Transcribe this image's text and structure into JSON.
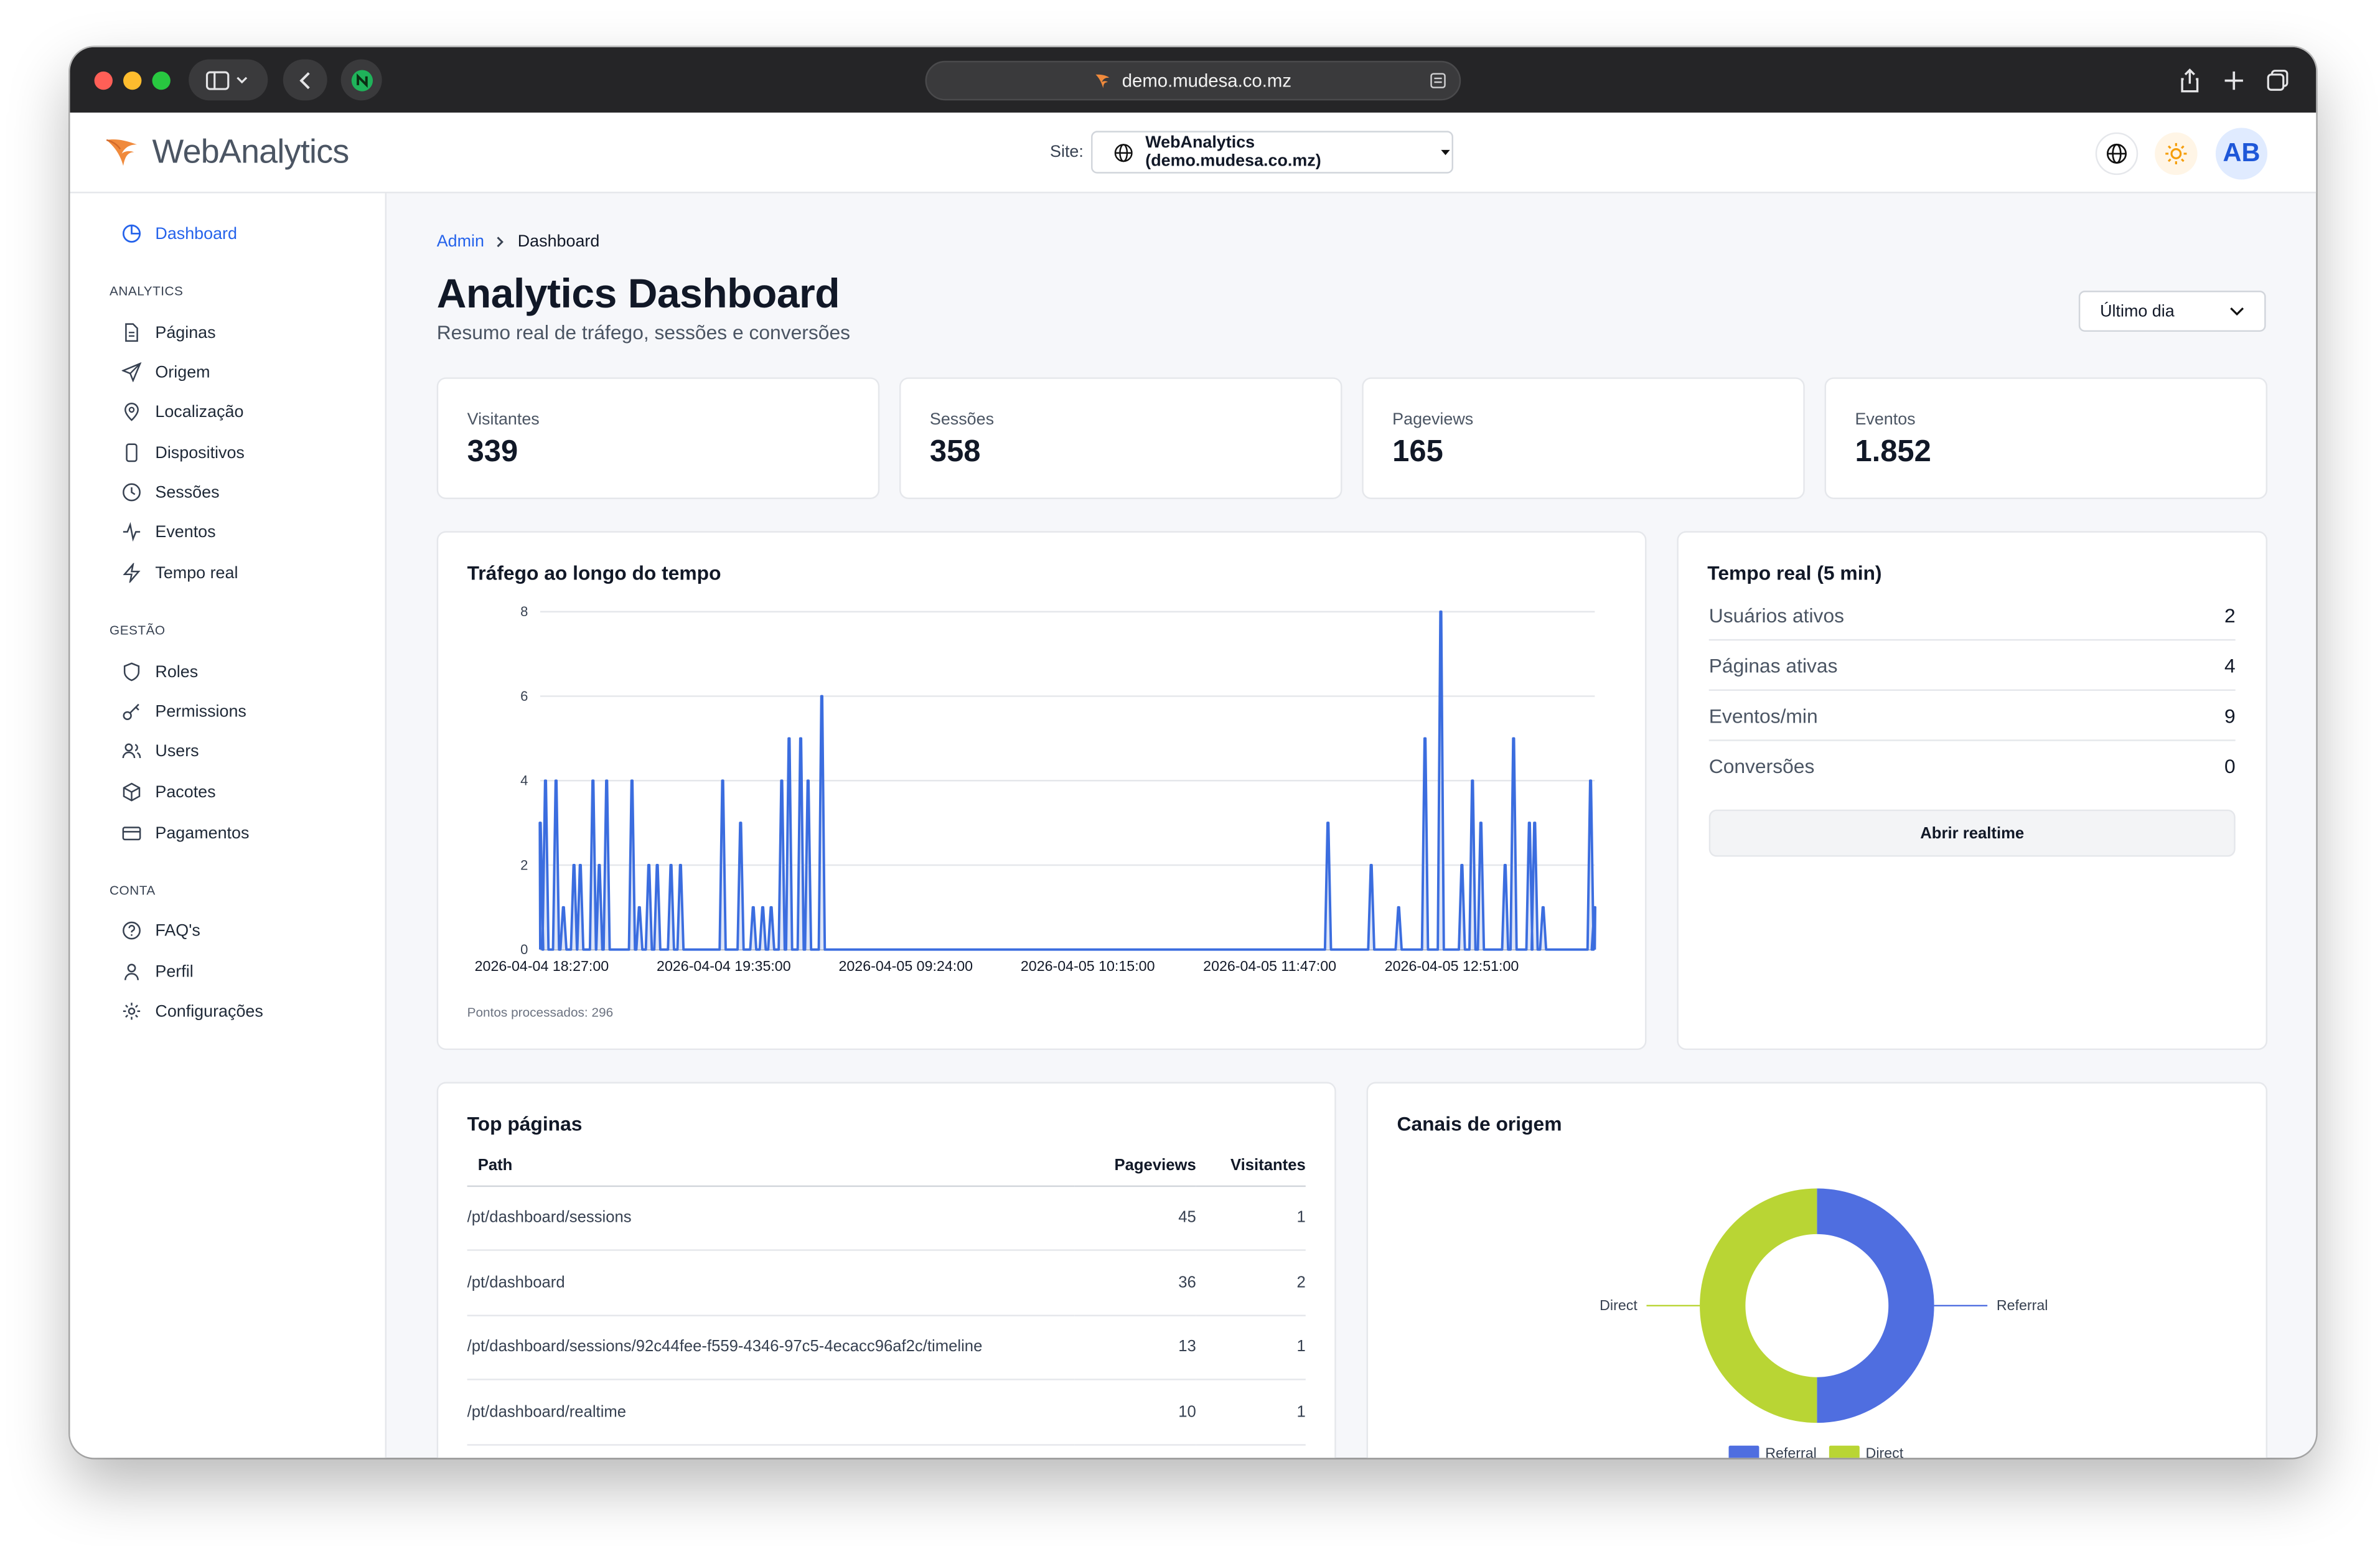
{
  "browser": {
    "url": "demo.mudesa.co.mz"
  },
  "brand": {
    "name": "WebAnalytics"
  },
  "header": {
    "site_label": "Site:",
    "site_value": "WebAnalytics (demo.mudesa.co.mz)",
    "avatar": "AB"
  },
  "sidebar": {
    "dashboard": "Dashboard",
    "sections": [
      {
        "title": "ANALYTICS",
        "items": [
          "Páginas",
          "Origem",
          "Localização",
          "Dispositivos",
          "Sessões",
          "Eventos",
          "Tempo real"
        ]
      },
      {
        "title": "GESTÃO",
        "items": [
          "Roles",
          "Permissions",
          "Users",
          "Pacotes",
          "Pagamentos"
        ]
      },
      {
        "title": "CONTA",
        "items": [
          "FAQ's",
          "Perfil",
          "Configurações"
        ]
      }
    ]
  },
  "breadcrumb": {
    "root": "Admin",
    "current": "Dashboard"
  },
  "page": {
    "title": "Analytics Dashboard",
    "subtitle": "Resumo real de tráfego, sessões e conversões",
    "range": "Último dia"
  },
  "kpis": [
    {
      "label": "Visitantes",
      "value": "339"
    },
    {
      "label": "Sessões",
      "value": "358"
    },
    {
      "label": "Pageviews",
      "value": "165"
    },
    {
      "label": "Eventos",
      "value": "1.852"
    }
  ],
  "traffic": {
    "title": "Tráfego ao longo do tempo",
    "footer": "Pontos processados: 296"
  },
  "realtime": {
    "title": "Tempo real (5 min)",
    "rows": [
      {
        "label": "Usuários ativos",
        "value": "2"
      },
      {
        "label": "Páginas ativas",
        "value": "4"
      },
      {
        "label": "Eventos/min",
        "value": "9"
      },
      {
        "label": "Conversões",
        "value": "0"
      }
    ],
    "button": "Abrir realtime"
  },
  "top_pages": {
    "title": "Top páginas",
    "columns": [
      "Path",
      "Pageviews",
      "Visitantes"
    ],
    "rows": [
      [
        "/pt/dashboard/sessions",
        "45",
        "1"
      ],
      [
        "/pt/dashboard",
        "36",
        "2"
      ],
      [
        "/pt/dashboard/sessions/92c44fee-f559-4346-97c5-4ecacc96af2c/timeline",
        "13",
        "1"
      ],
      [
        "/pt/dashboard/realtime",
        "10",
        "1"
      ]
    ]
  },
  "channels": {
    "title": "Canais de origem"
  },
  "chart_data": [
    {
      "type": "area",
      "title": "Tráfego ao longo do tempo",
      "x_tick_labels": [
        "2026-04-04 18:27:00",
        "2026-04-04 19:35:00",
        "2026-04-05 09:24:00",
        "2026-04-05 10:15:00",
        "2026-04-05 11:47:00",
        "2026-04-05 12:51:00"
      ],
      "ylim": [
        0,
        8
      ],
      "y_ticks": [
        0,
        2,
        4,
        6,
        8
      ],
      "grid": true,
      "color": "#3b6ddf",
      "fill": "#dfe6f7",
      "spikes": [
        {
          "x": 0.0,
          "y": 3
        },
        {
          "x": 0.5,
          "y": 4
        },
        {
          "x": 1.5,
          "y": 4
        },
        {
          "x": 2.2,
          "y": 1
        },
        {
          "x": 3.2,
          "y": 2
        },
        {
          "x": 3.8,
          "y": 2
        },
        {
          "x": 5.0,
          "y": 4
        },
        {
          "x": 5.6,
          "y": 2
        },
        {
          "x": 6.3,
          "y": 4
        },
        {
          "x": 8.7,
          "y": 4
        },
        {
          "x": 9.4,
          "y": 1
        },
        {
          "x": 10.3,
          "y": 2
        },
        {
          "x": 11.1,
          "y": 2
        },
        {
          "x": 12.4,
          "y": 2
        },
        {
          "x": 13.3,
          "y": 2
        },
        {
          "x": 17.3,
          "y": 4
        },
        {
          "x": 19.0,
          "y": 3
        },
        {
          "x": 20.2,
          "y": 1
        },
        {
          "x": 21.1,
          "y": 1
        },
        {
          "x": 21.9,
          "y": 1
        },
        {
          "x": 22.9,
          "y": 4
        },
        {
          "x": 23.6,
          "y": 5
        },
        {
          "x": 24.7,
          "y": 5
        },
        {
          "x": 25.4,
          "y": 4
        },
        {
          "x": 26.7,
          "y": 6
        },
        {
          "x": 74.7,
          "y": 3
        },
        {
          "x": 78.8,
          "y": 2
        },
        {
          "x": 81.4,
          "y": 1
        },
        {
          "x": 83.9,
          "y": 5
        },
        {
          "x": 85.4,
          "y": 8
        },
        {
          "x": 87.4,
          "y": 2
        },
        {
          "x": 88.4,
          "y": 4
        },
        {
          "x": 89.2,
          "y": 3
        },
        {
          "x": 91.5,
          "y": 2
        },
        {
          "x": 92.3,
          "y": 5
        },
        {
          "x": 93.8,
          "y": 3
        },
        {
          "x": 94.3,
          "y": 3
        },
        {
          "x": 95.1,
          "y": 1
        },
        {
          "x": 99.6,
          "y": 4
        },
        {
          "x": 100,
          "y": 1
        }
      ]
    },
    {
      "type": "pie",
      "title": "Canais de origem",
      "labels": [
        "Referral",
        "Direct"
      ],
      "values": [
        50,
        50
      ],
      "colors": [
        "#4f6ee0",
        "#b9d534"
      ],
      "legend": "bottom"
    }
  ]
}
